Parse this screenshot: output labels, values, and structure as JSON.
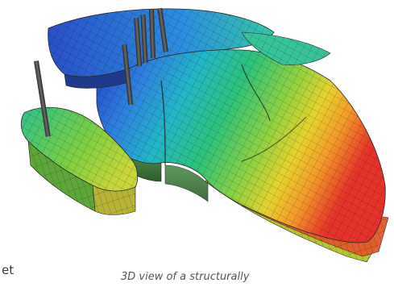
{
  "figure": {
    "description_icon": "reservoir-model-3d",
    "palette": [
      "#1f3fbf",
      "#2f7fe0",
      "#23b6c8",
      "#2ec27a",
      "#8fd142",
      "#e6d22e",
      "#f39a2a",
      "#e5322a"
    ]
  },
  "text": {
    "left_fragment": "et",
    "caption": "3D view of a structurally"
  }
}
